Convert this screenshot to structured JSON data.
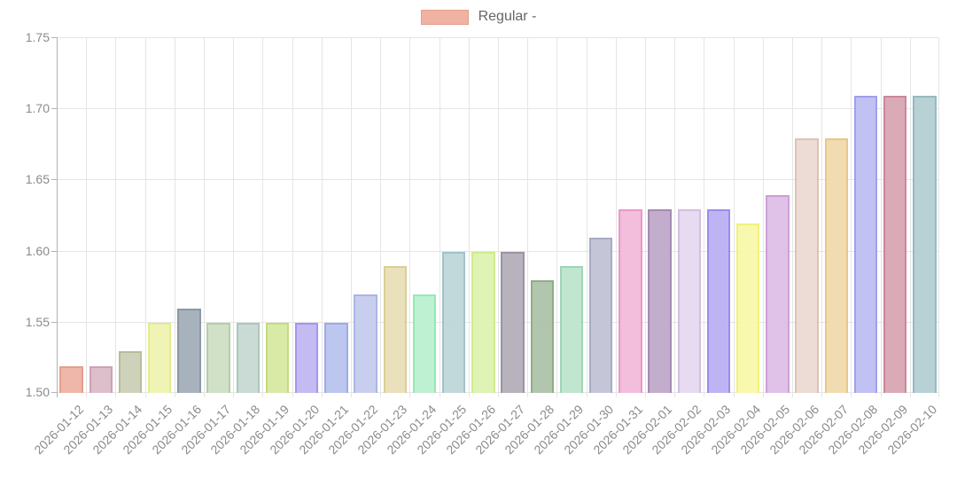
{
  "chart_data": {
    "type": "bar",
    "title": "",
    "legend": [
      {
        "label": "Regular -",
        "fill": "#f0b2a3",
        "border": "#e2a08d"
      }
    ],
    "legend_position": "top-center",
    "grid": true,
    "xlabel": "",
    "ylabel": "",
    "ylim": [
      1.5,
      1.75
    ],
    "yticks": {
      "values": [
        1.5,
        1.55,
        1.6,
        1.65,
        1.7,
        1.75
      ],
      "labels": [
        "1.50",
        "1.55",
        "1.60",
        "1.65",
        "1.70",
        "1.75"
      ]
    },
    "categories": [
      "2026-01-12",
      "2026-01-13",
      "2026-01-14",
      "2026-01-15",
      "2026-01-16",
      "2026-01-17",
      "2026-01-18",
      "2026-01-19",
      "2026-01-20",
      "2026-01-21",
      "2026-01-22",
      "2026-01-23",
      "2026-01-24",
      "2026-01-25",
      "2026-01-26",
      "2026-01-27",
      "2026-01-28",
      "2026-01-29",
      "2026-01-30",
      "2026-01-31",
      "2026-02-01",
      "2026-02-02",
      "2026-02-03",
      "2026-02-04",
      "2026-02-05",
      "2026-02-06",
      "2026-02-07",
      "2026-02-08",
      "2026-02-09",
      "2026-02-10"
    ],
    "series": [
      {
        "name": "Regular -",
        "values": [
          1.519,
          1.519,
          1.529,
          1.549,
          1.559,
          1.549,
          1.549,
          1.549,
          1.549,
          1.549,
          1.569,
          1.589,
          1.569,
          1.599,
          1.599,
          1.599,
          1.579,
          1.589,
          1.609,
          1.629,
          1.629,
          1.629,
          1.629,
          1.619,
          1.639,
          1.679,
          1.679,
          1.709,
          1.709,
          1.709
        ],
        "bar_fills": [
          "#efb3a6",
          "#dcbbc9",
          "#cdd0b8",
          "#eff4b2",
          "#a4aeba",
          "#cfe0c6",
          "#c8dad3",
          "#d7e9a3",
          "#c0b8f2",
          "#bac3ef",
          "#c6cdee",
          "#e9e0b9",
          "#bbf1d0",
          "#bfd7da",
          "#def3b2",
          "#b5aeba",
          "#aec3aa",
          "#bee5cd",
          "#c1c4d6",
          "#f3badb",
          "#bfaaca",
          "#e5daf0",
          "#bbb0f3",
          "#f8f8aa",
          "#dfbee6",
          "#ebdbd3",
          "#f1dbae",
          "#bebef3",
          "#d9a6b4",
          "#b4cfd3"
        ],
        "bar_borders": [
          "#e49a88",
          "#cc9cb1",
          "#b5ba94",
          "#e3ec83",
          "#8594a3",
          "#b0cda1",
          "#a8c4b9",
          "#c0dc74",
          "#a091ec",
          "#97a7e6",
          "#a7b2e3",
          "#dacb90",
          "#90e8b3",
          "#9dc0c6",
          "#cdeb85",
          "#978ea0",
          "#8ba983",
          "#97d5b0",
          "#a3a7c0",
          "#ec92c6",
          "#a283b0",
          "#d0bce2",
          "#9587ec",
          "#f1f176",
          "#cb9bd6",
          "#dcbfb1",
          "#e7c583",
          "#9b9bec",
          "#c98196",
          "#92b7bd"
        ]
      }
    ],
    "colors": {
      "grid": "#e5e5e5",
      "axis": "#b3b3b3",
      "tick_text": "#8b8b8b",
      "legend_text": "#666666",
      "background": "#ffffff"
    }
  }
}
